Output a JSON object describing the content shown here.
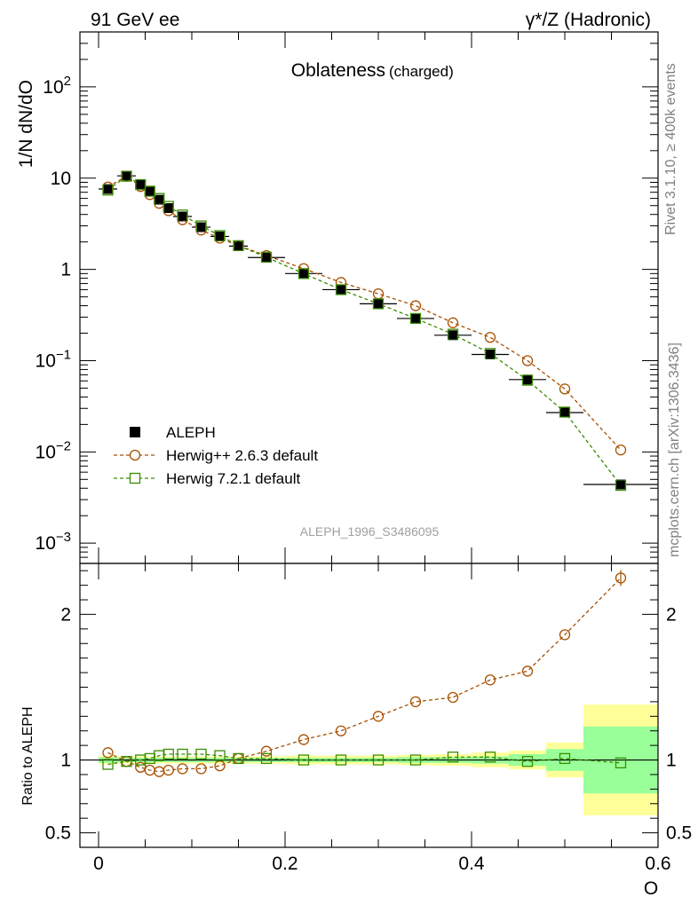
{
  "header": {
    "left_label": "91 GeV ee",
    "right_label": "γ*/Z (Hadronic)"
  },
  "side_labels": {
    "rivet": "Rivet 3.1.10, ≥ 400k events",
    "mcplots": "mcplots.cern.ch [arXiv:1306.3436]"
  },
  "chart_data": [
    {
      "type": "line",
      "panel": "main",
      "title": "Oblateness",
      "subtitle": "(charged)",
      "ylabel": "1/N dN/dO",
      "xlabel": "",
      "yscale": "log",
      "xlim": [
        -0.02,
        0.6
      ],
      "ylim": [
        0.0006,
        400
      ],
      "ytick_labels": [
        {
          "value": 0.001,
          "base": "10",
          "exp": "−3"
        },
        {
          "value": 0.01,
          "base": "10",
          "exp": "−2"
        },
        {
          "value": 0.1,
          "base": "10",
          "exp": "−1"
        },
        {
          "value": 1,
          "base": "1",
          "exp": ""
        },
        {
          "value": 10,
          "base": "10",
          "exp": ""
        },
        {
          "value": 100,
          "base": "10",
          "exp": "2"
        }
      ],
      "watermark": "ALEPH_1996_S3486095",
      "legend": [
        "ALEPH",
        "Herwig++ 2.6.3 default",
        "Herwig 7.2.1 default"
      ],
      "legend_position": "bottom-left",
      "series": [
        {
          "name": "ALEPH",
          "style": "data",
          "color": "#000000",
          "x": [
            0.01,
            0.03,
            0.045,
            0.055,
            0.065,
            0.075,
            0.09,
            0.11,
            0.13,
            0.15,
            0.18,
            0.22,
            0.26,
            0.3,
            0.34,
            0.38,
            0.42,
            0.46,
            0.5,
            0.56
          ],
          "y": [
            7.6,
            10.6,
            8.5,
            7.1,
            5.8,
            4.7,
            3.8,
            2.9,
            2.3,
            1.8,
            1.35,
            0.9,
            0.6,
            0.42,
            0.29,
            0.19,
            0.117,
            0.062,
            0.027,
            0.0044
          ],
          "xerr": [
            0.01,
            0.01,
            0.005,
            0.005,
            0.005,
            0.005,
            0.01,
            0.01,
            0.01,
            0.01,
            0.02,
            0.02,
            0.02,
            0.02,
            0.02,
            0.02,
            0.02,
            0.02,
            0.02,
            0.04
          ]
        },
        {
          "name": "Herwig++ 2.6.3 default",
          "style": "circle",
          "color": "#a84f00",
          "x": [
            0.01,
            0.03,
            0.045,
            0.055,
            0.065,
            0.075,
            0.09,
            0.11,
            0.13,
            0.15,
            0.18,
            0.22,
            0.26,
            0.3,
            0.34,
            0.38,
            0.42,
            0.46,
            0.5,
            0.56
          ],
          "y": [
            8.0,
            10.5,
            8.1,
            6.6,
            5.3,
            4.4,
            3.5,
            2.7,
            2.2,
            1.82,
            1.42,
            1.02,
            0.72,
            0.54,
            0.4,
            0.26,
            0.18,
            0.1,
            0.049,
            0.0105
          ]
        },
        {
          "name": "Herwig 7.2.1 default",
          "style": "square",
          "color": "#3a8d00",
          "x": [
            0.01,
            0.03,
            0.045,
            0.055,
            0.065,
            0.075,
            0.09,
            0.11,
            0.13,
            0.15,
            0.18,
            0.22,
            0.26,
            0.3,
            0.34,
            0.38,
            0.42,
            0.46,
            0.5,
            0.56
          ],
          "y": [
            7.4,
            10.5,
            8.5,
            7.2,
            6.0,
            4.9,
            3.95,
            3.0,
            2.35,
            1.82,
            1.36,
            0.9,
            0.6,
            0.42,
            0.29,
            0.195,
            0.12,
            0.061,
            0.0273,
            0.0043
          ]
        }
      ]
    },
    {
      "type": "line",
      "panel": "ratio",
      "ylabel": "Ratio to ALEPH",
      "xlabel": "O",
      "xlim": [
        -0.02,
        0.6
      ],
      "ylim": [
        0.4,
        2.35
      ],
      "x_ticks": [
        0,
        0.2,
        0.4,
        0.6
      ],
      "x_tick_labels": [
        "0",
        "0.2",
        "0.4",
        "0.6"
      ],
      "y_ticks": [
        0.5,
        1,
        2
      ],
      "y_tick_labels": [
        "0.5",
        "1",
        "2"
      ],
      "bands": {
        "x_lo": [
          0.0,
          0.02,
          0.04,
          0.05,
          0.06,
          0.07,
          0.08,
          0.1,
          0.12,
          0.14,
          0.16,
          0.2,
          0.24,
          0.28,
          0.32,
          0.36,
          0.4,
          0.44,
          0.48,
          0.52
        ],
        "x_hi": [
          0.02,
          0.04,
          0.05,
          0.06,
          0.07,
          0.08,
          0.1,
          0.12,
          0.14,
          0.16,
          0.2,
          0.24,
          0.28,
          0.32,
          0.36,
          0.4,
          0.44,
          0.48,
          0.52,
          0.6
        ],
        "inner": [
          0.02,
          0.015,
          0.015,
          0.015,
          0.015,
          0.015,
          0.015,
          0.015,
          0.015,
          0.015,
          0.015,
          0.015,
          0.015,
          0.015,
          0.02,
          0.02,
          0.025,
          0.04,
          0.075,
          0.23
        ],
        "outer": [
          0.03,
          0.025,
          0.025,
          0.025,
          0.025,
          0.025,
          0.025,
          0.025,
          0.025,
          0.025,
          0.025,
          0.03,
          0.03,
          0.03,
          0.035,
          0.04,
          0.05,
          0.065,
          0.12,
          0.38
        ],
        "inner_color": "#99ff99",
        "outer_color": "#ffff99"
      },
      "series": [
        {
          "name": "Herwig++ 2.6.3 default",
          "style": "circle",
          "color": "#a84f00",
          "x": [
            0.01,
            0.03,
            0.045,
            0.055,
            0.065,
            0.075,
            0.09,
            0.11,
            0.13,
            0.15,
            0.18,
            0.22,
            0.26,
            0.3,
            0.34,
            0.38,
            0.42,
            0.46,
            0.5,
            0.56
          ],
          "y": [
            1.05,
            0.99,
            0.95,
            0.93,
            0.92,
            0.93,
            0.94,
            0.94,
            0.96,
            1.01,
            1.06,
            1.14,
            1.2,
            1.3,
            1.4,
            1.43,
            1.55,
            1.61,
            1.86,
            2.25
          ]
        },
        {
          "name": "Herwig 7.2.1 default",
          "style": "square",
          "color": "#3a8d00",
          "x": [
            0.01,
            0.03,
            0.045,
            0.055,
            0.065,
            0.075,
            0.09,
            0.11,
            0.13,
            0.15,
            0.18,
            0.22,
            0.26,
            0.3,
            0.34,
            0.38,
            0.42,
            0.46,
            0.5,
            0.56
          ],
          "y": [
            0.97,
            0.99,
            1.0,
            1.01,
            1.03,
            1.04,
            1.04,
            1.04,
            1.03,
            1.01,
            1.01,
            1.0,
            1.0,
            1.0,
            1.0,
            1.02,
            1.02,
            0.99,
            1.01,
            0.98
          ]
        }
      ]
    }
  ]
}
